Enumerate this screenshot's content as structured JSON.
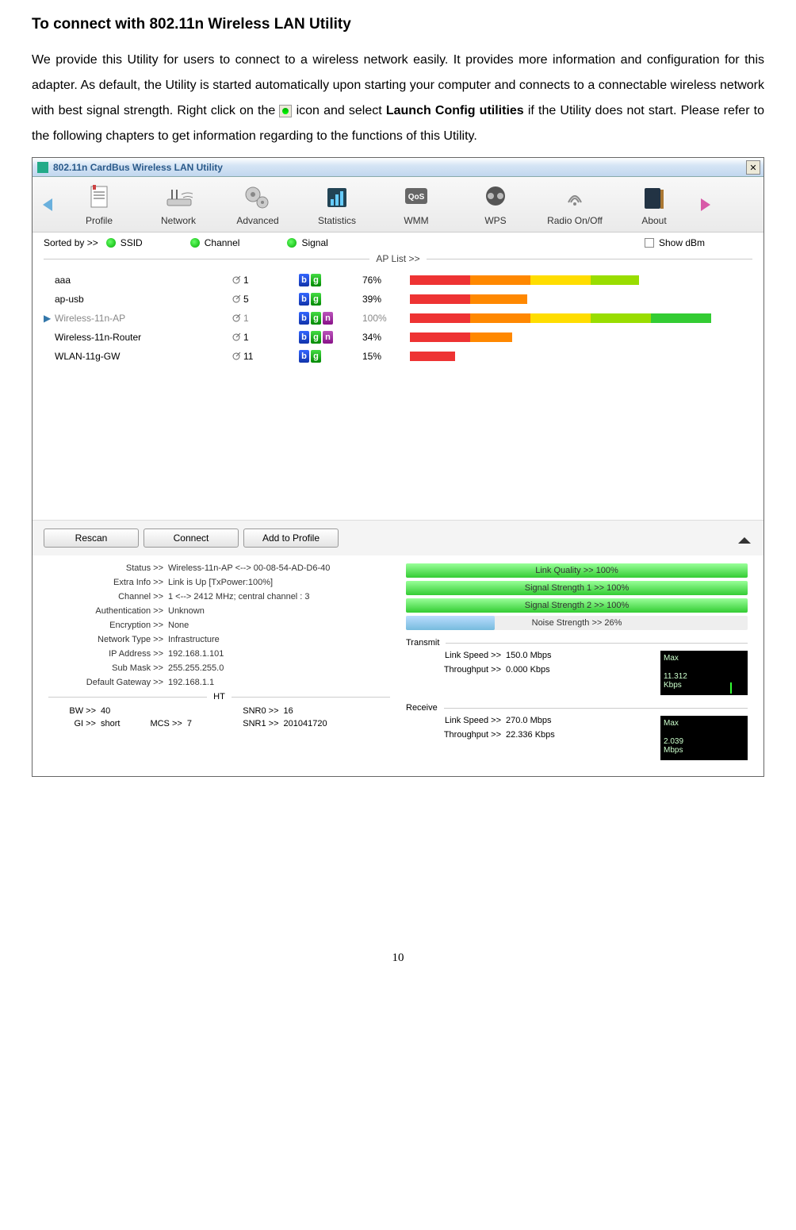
{
  "heading": "To connect with 802.11n Wireless LAN Utility",
  "para_before": "We provide this Utility for users to connect to a wireless network easily. It provides more information and configuration for this adapter. As default, the Utility is started automatically upon starting your computer and connects to a connectable wireless network with best signal strength. Right click on the ",
  "para_mid1": " icon and select ",
  "para_bold": "Launch Config utilities",
  "para_after": " if the Utility does not start. Please refer to the following chapters to get information regarding to the functions of this Utility.",
  "window_title": "802.11n CardBus Wireless LAN Utility",
  "toolbar": [
    {
      "label": "Profile"
    },
    {
      "label": "Network"
    },
    {
      "label": "Advanced"
    },
    {
      "label": "Statistics"
    },
    {
      "label": "WMM"
    },
    {
      "label": "WPS"
    },
    {
      "label": "Radio On/Off"
    },
    {
      "label": "About"
    }
  ],
  "sort_by": "Sorted by >>",
  "sort_ssid": "SSID",
  "sort_channel": "Channel",
  "sort_signal": "Signal",
  "show_dbm": "Show dBm",
  "aplist_label": "AP List >>",
  "aps": [
    {
      "ssid": "aaa",
      "ch": "1",
      "modes": [
        "b",
        "g"
      ],
      "pct": "76%",
      "fill": 76,
      "selected": false
    },
    {
      "ssid": "ap-usb",
      "ch": "5",
      "modes": [
        "b",
        "g"
      ],
      "pct": "39%",
      "fill": 39,
      "selected": false
    },
    {
      "ssid": "Wireless-11n-AP",
      "ch": "1",
      "modes": [
        "b",
        "g",
        "n"
      ],
      "pct": "100%",
      "fill": 100,
      "selected": true
    },
    {
      "ssid": "Wireless-11n-Router",
      "ch": "1",
      "modes": [
        "b",
        "g",
        "n"
      ],
      "pct": "34%",
      "fill": 34,
      "selected": false
    },
    {
      "ssid": "WLAN-11g-GW",
      "ch": "11",
      "modes": [
        "b",
        "g"
      ],
      "pct": "15%",
      "fill": 15,
      "selected": false
    }
  ],
  "btn_rescan": "Rescan",
  "btn_connect": "Connect",
  "btn_add": "Add to Profile",
  "status": {
    "Status": "Wireless-11n-AP <--> 00-08-54-AD-D6-40",
    "Extra_Info": "Link is Up [TxPower:100%]",
    "Channel": "1 <--> 2412 MHz; central channel : 3",
    "Authentication": "Unknown",
    "Encryption": "None",
    "Network_Type": "Infrastructure",
    "IP_Address": "192.168.1.101",
    "Sub_Mask": "255.255.255.0",
    "Default_Gateway": "192.168.1.1"
  },
  "status_labels": {
    "Status": "Status >>",
    "Extra_Info": "Extra Info >>",
    "Channel": "Channel >>",
    "Authentication": "Authentication >>",
    "Encryption": "Encryption >>",
    "Network_Type": "Network Type >>",
    "IP_Address": "IP Address >>",
    "Sub_Mask": "Sub Mask >>",
    "Default_Gateway": "Default Gateway >>"
  },
  "ht_label": "HT",
  "ht": {
    "BW": "40",
    "SNR0": "16",
    "GI": "short",
    "MCS": "7",
    "SNR1": "201041720"
  },
  "ht_labels": {
    "BW": "BW >>",
    "SNR0": "SNR0 >>",
    "GI": "GI >>",
    "MCS": "MCS >>",
    "SNR1": "SNR1 >>"
  },
  "quality_bars": [
    {
      "text": "Link Quality >> 100%",
      "fill": 100,
      "color": "linear-gradient(#9f9,#3c3)"
    },
    {
      "text": "Signal Strength 1 >> 100%",
      "fill": 100,
      "color": "linear-gradient(#9f9,#3c3)"
    },
    {
      "text": "Signal Strength 2 >> 100%",
      "fill": 100,
      "color": "linear-gradient(#9f9,#3c3)"
    },
    {
      "text": "Noise Strength >> 26%",
      "fill": 26,
      "color": "linear-gradient(#bdf,#7bd)"
    }
  ],
  "transmit_label": "Transmit",
  "receive_label": "Receive",
  "tx": {
    "link_speed": "150.0 Mbps",
    "throughput": "0.000 Kbps",
    "max": "Max",
    "val": "11.312",
    "unit": "Kbps"
  },
  "rx": {
    "link_speed": "270.0 Mbps",
    "throughput": "22.336 Kbps",
    "max": "Max",
    "val": "2.039",
    "unit": "Mbps"
  },
  "link_speed_label": "Link Speed >>",
  "throughput_label": "Throughput >>",
  "pagenum": "10"
}
